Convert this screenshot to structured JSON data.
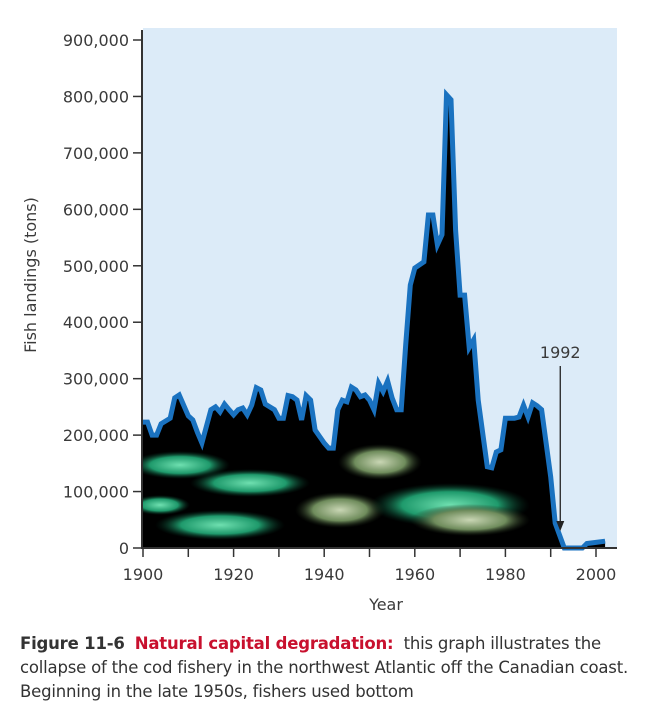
{
  "chart_data": {
    "type": "area",
    "title": "",
    "xlabel": "Year",
    "ylabel": "Fish landings (tons)",
    "xlim": [
      1900,
      2005
    ],
    "ylim": [
      0,
      900000
    ],
    "x_ticks": [
      1900,
      1910,
      1920,
      1930,
      1940,
      1950,
      1960,
      1970,
      1980,
      1990,
      2000
    ],
    "x_tick_labels": [
      "1900",
      "1920",
      "1940",
      "1960",
      "1980",
      "2000"
    ],
    "y_ticks": [
      0,
      100000,
      200000,
      300000,
      400000,
      500000,
      600000,
      700000,
      800000,
      900000
    ],
    "y_tick_labels": [
      "0",
      "100,000",
      "200,000",
      "300,000",
      "400,000",
      "500,000",
      "600,000",
      "700,000",
      "800,000",
      "900,000"
    ],
    "grid": false,
    "colors": {
      "line": "#1a72c0",
      "fill": "#000000",
      "background": "#dcebf8",
      "photo_fish": "#2fbf8a"
    },
    "series": [
      {
        "x": [
          1900,
          1901,
          1902,
          1903,
          1904,
          1906,
          1907,
          1908,
          1910,
          1911,
          1912,
          1913,
          1915,
          1916,
          1917,
          1918,
          1919,
          1920,
          1921,
          1922,
          1923,
          1924,
          1925,
          1926,
          1927,
          1929,
          1930,
          1931,
          1932,
          1933,
          1934,
          1935,
          1936,
          1937,
          1938,
          1940,
          1941,
          1942,
          1943,
          1944,
          1945,
          1946,
          1947,
          1948,
          1949,
          1950,
          1951,
          1952,
          1953,
          1954,
          1955,
          1956,
          1957,
          1958,
          1959,
          1960,
          1962,
          1963,
          1964,
          1965,
          1966,
          1967,
          1968,
          1969,
          1970,
          1971,
          1972,
          1973,
          1974,
          1976,
          1977,
          1978,
          1979,
          1980,
          1982,
          1983,
          1984,
          1985,
          1986,
          1987,
          1988,
          1990,
          1991,
          1993,
          1995,
          1997,
          1998,
          2000,
          2002
        ],
        "y": [
          223000,
          223000,
          200000,
          200000,
          220000,
          230000,
          266000,
          271000,
          234000,
          227000,
          205000,
          186000,
          245000,
          250000,
          241000,
          255000,
          245000,
          236000,
          245000,
          248000,
          236000,
          253000,
          284000,
          280000,
          255000,
          245000,
          230000,
          230000,
          270000,
          268000,
          262000,
          227000,
          270000,
          262000,
          209000,
          186000,
          177000,
          177000,
          245000,
          262000,
          259000,
          285000,
          280000,
          268000,
          271000,
          262000,
          245000,
          292000,
          277000,
          296000,
          266000,
          245000,
          245000,
          360000,
          466000,
          496000,
          507000,
          590000,
          590000,
          537000,
          555000,
          803000,
          794000,
          563000,
          448000,
          448000,
          355000,
          369000,
          262000,
          144000,
          142000,
          170000,
          174000,
          230000,
          230000,
          232000,
          253000,
          232000,
          257000,
          252000,
          245000,
          126000,
          44000,
          0,
          0,
          0,
          8000,
          10000,
          12000
        ]
      }
    ],
    "annotations": [
      {
        "text": "1992",
        "x": 1992,
        "arrow": true
      }
    ]
  },
  "caption": {
    "figure_label": "Figure 11-6",
    "highlight": "Natural capital degradation:",
    "text": "this graph illustrates the collapse of the cod fishery in the northwest Atlantic off the Canadian coast. Beginning in the late 1950s, fishers used bottom"
  }
}
